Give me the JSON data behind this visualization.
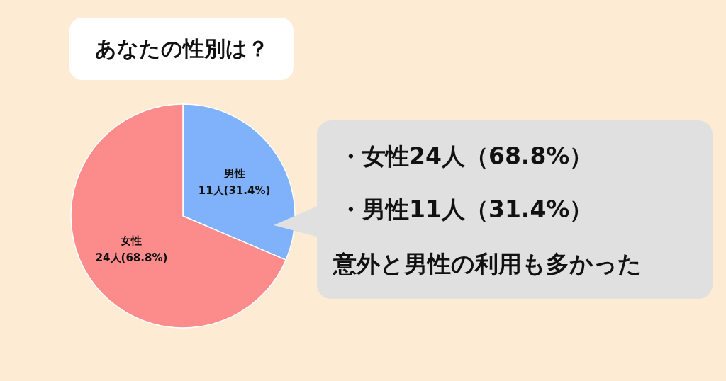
{
  "chart_data": {
    "type": "pie",
    "title": "あなたの性別は？",
    "categories": [
      "男性",
      "女性"
    ],
    "values": [
      11,
      24
    ],
    "value_labels": [
      "11人(31.4%)",
      "24人(68.8%)"
    ],
    "colors": [
      "#80b2fc",
      "#fc8c8c"
    ],
    "annotations": [
      "・女性24人（68.8%）",
      "・男性11人（31.4%）",
      "意外と男性の利用も多かった"
    ]
  }
}
